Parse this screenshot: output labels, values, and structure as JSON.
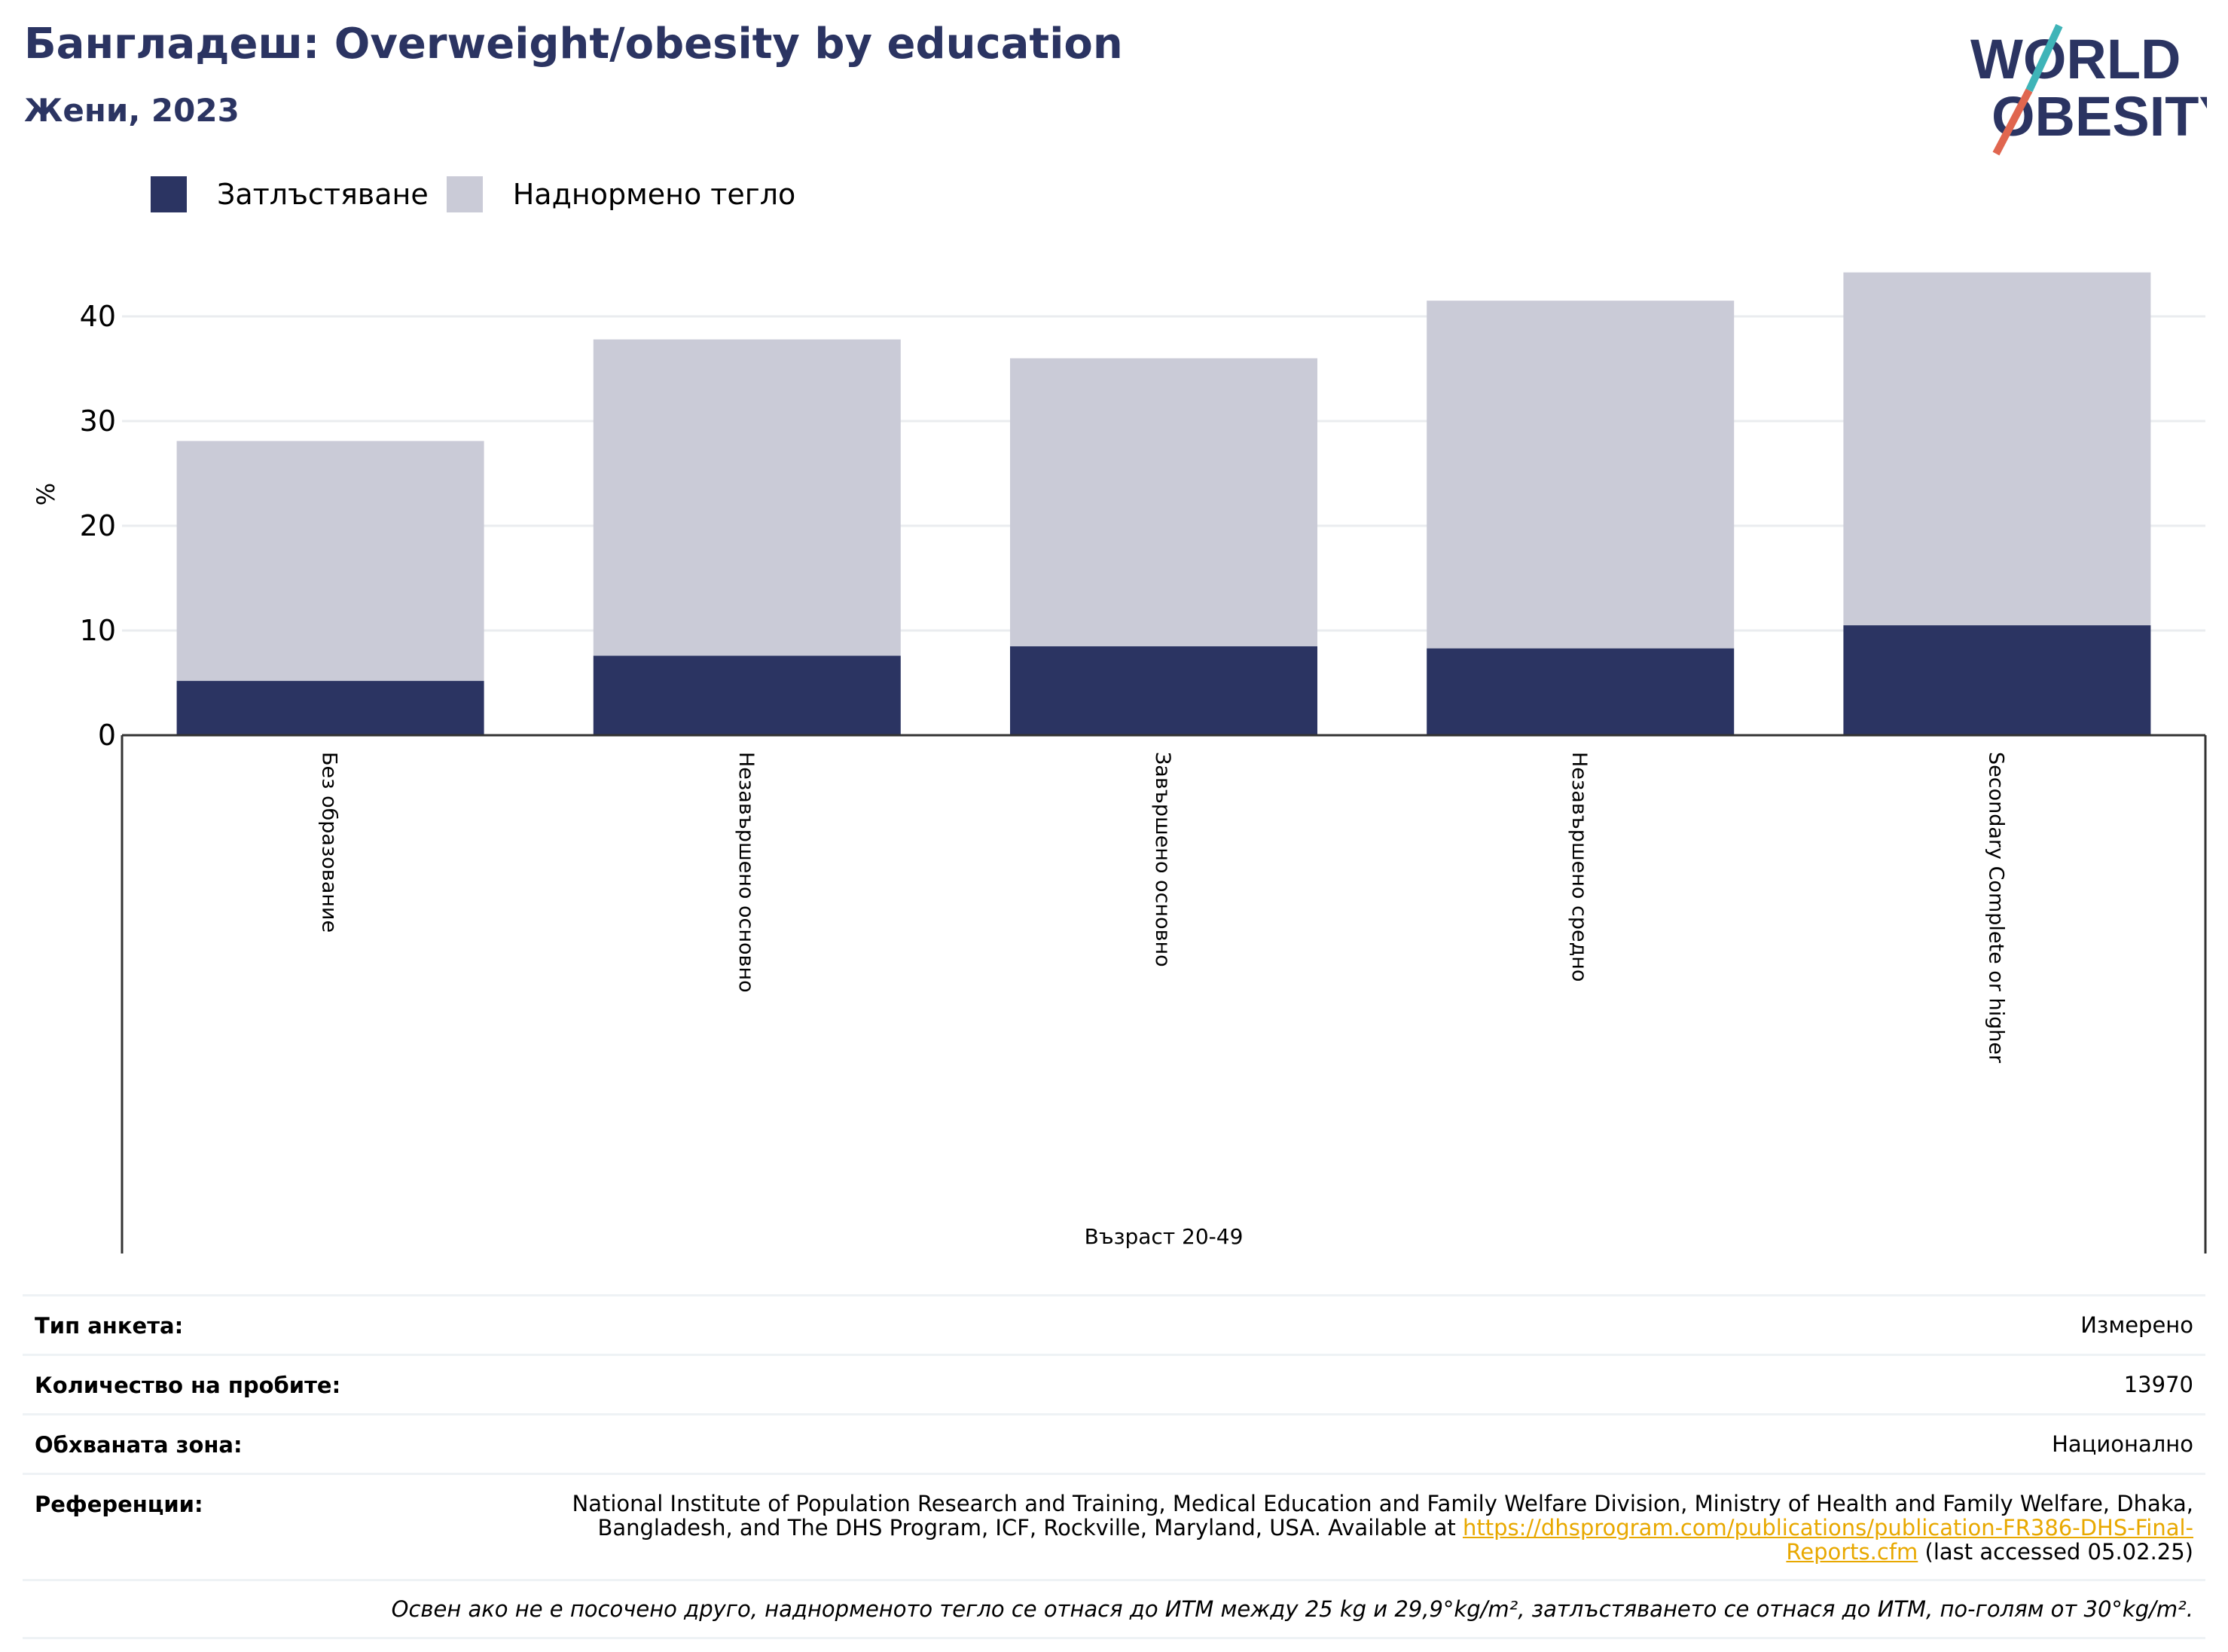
{
  "header": {
    "title": "Бангладеш: Overweight/obesity by education",
    "subtitle": "Жени, 2023"
  },
  "logo": {
    "line1": "WORLD",
    "line2": "OBESITY",
    "colors": {
      "text": "#2b3462",
      "slash_top": "#3fb4b8",
      "slash_bottom": "#e0664f"
    }
  },
  "legend": {
    "items": [
      {
        "label": "Затлъстяване",
        "color": "#2b3462"
      },
      {
        "label": "Наднормено тегло",
        "color": "#cacbd7"
      }
    ]
  },
  "chart_data": {
    "type": "bar",
    "stacked": true,
    "title": "Бангладеш: Overweight/obesity by education",
    "subtitle": "Жени, 2023",
    "xlabel": "Възраст 20-49",
    "ylabel": "%",
    "ylim": [
      0,
      45
    ],
    "yticks": [
      0,
      10,
      20,
      30,
      40
    ],
    "grid": true,
    "legend_position": "top-left",
    "categories": [
      "Без образование",
      "Незавършено основно",
      "Завършено основно",
      "Незавършено средно",
      "Secondary Complete or higher"
    ],
    "series": [
      {
        "name": "Затлъстяване",
        "color": "#2b3462",
        "values": [
          5.2,
          7.6,
          8.5,
          8.3,
          10.5
        ]
      },
      {
        "name": "Наднормено тегло",
        "color": "#cacbd7",
        "values": [
          22.9,
          30.2,
          27.5,
          33.2,
          33.7
        ]
      }
    ]
  },
  "meta": {
    "survey_type_label": "Тип анкета:",
    "survey_type_value": "Измерено",
    "sample_size_label": "Количество на пробите:",
    "sample_size_value": "13970",
    "area_label": "Обхваната зона:",
    "area_value": "Национално",
    "references_label": "Референции:",
    "references_text": "National Institute of Population Research and Training, Medical Education and Family Welfare Division, Ministry of Health and Family Welfare, Dhaka, Bangladesh, and The DHS Program, ICF, Rockville, Maryland, USA. Available at ",
    "references_link": "https://dhsprogram.com/publications/publication-FR386-DHS-Final-Reports.cfm",
    "references_suffix": " (last accessed 05.02.25)",
    "note": "Освен ако не е посочено друго, наднорменото тегло се отнася до ИТМ между 25 kg и 29,9°kg/m², затлъстяването се отнася до ИТМ, по-голям от 30°kg/m²."
  }
}
